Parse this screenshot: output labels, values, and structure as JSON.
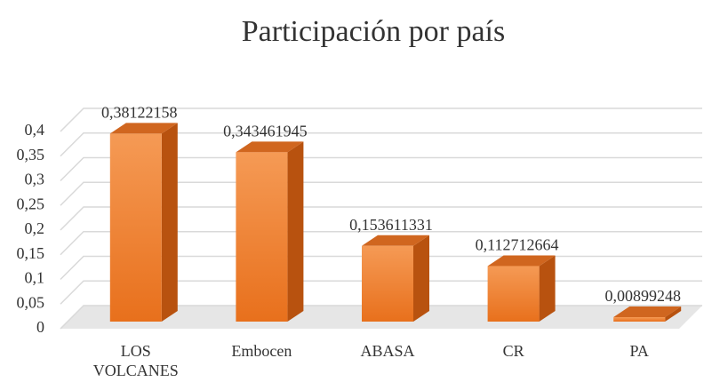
{
  "chart_data": {
    "type": "bar3d",
    "title": "Participación por país",
    "categories": [
      "LOS VOLCANES",
      "Embocen",
      "ABASA",
      "CR",
      "PA"
    ],
    "values": [
      0.38122158,
      0.343461945,
      0.153611331,
      0.112712664,
      0.00899248
    ],
    "value_labels": [
      "0,38122158",
      "0,343461945",
      "0,153611331",
      "0,112712664",
      "0,00899248"
    ],
    "color": "#ed7d31",
    "ylim": [
      0,
      0.4
    ],
    "yticks": [
      0,
      {
        "value": 0.05,
        "label": "0,05"
      },
      {
        "value": 0.1,
        "label": "0,1"
      },
      {
        "value": 0.15,
        "label": "0,15"
      },
      {
        "value": 0.2,
        "label": "0,2"
      },
      {
        "value": 0.25,
        "label": "0,25"
      },
      {
        "value": 0.3,
        "label": "0,3"
      },
      {
        "value": 0.35,
        "label": "0,35"
      },
      {
        "value": 0.4,
        "label": "0,4"
      }
    ],
    "grid": true
  }
}
